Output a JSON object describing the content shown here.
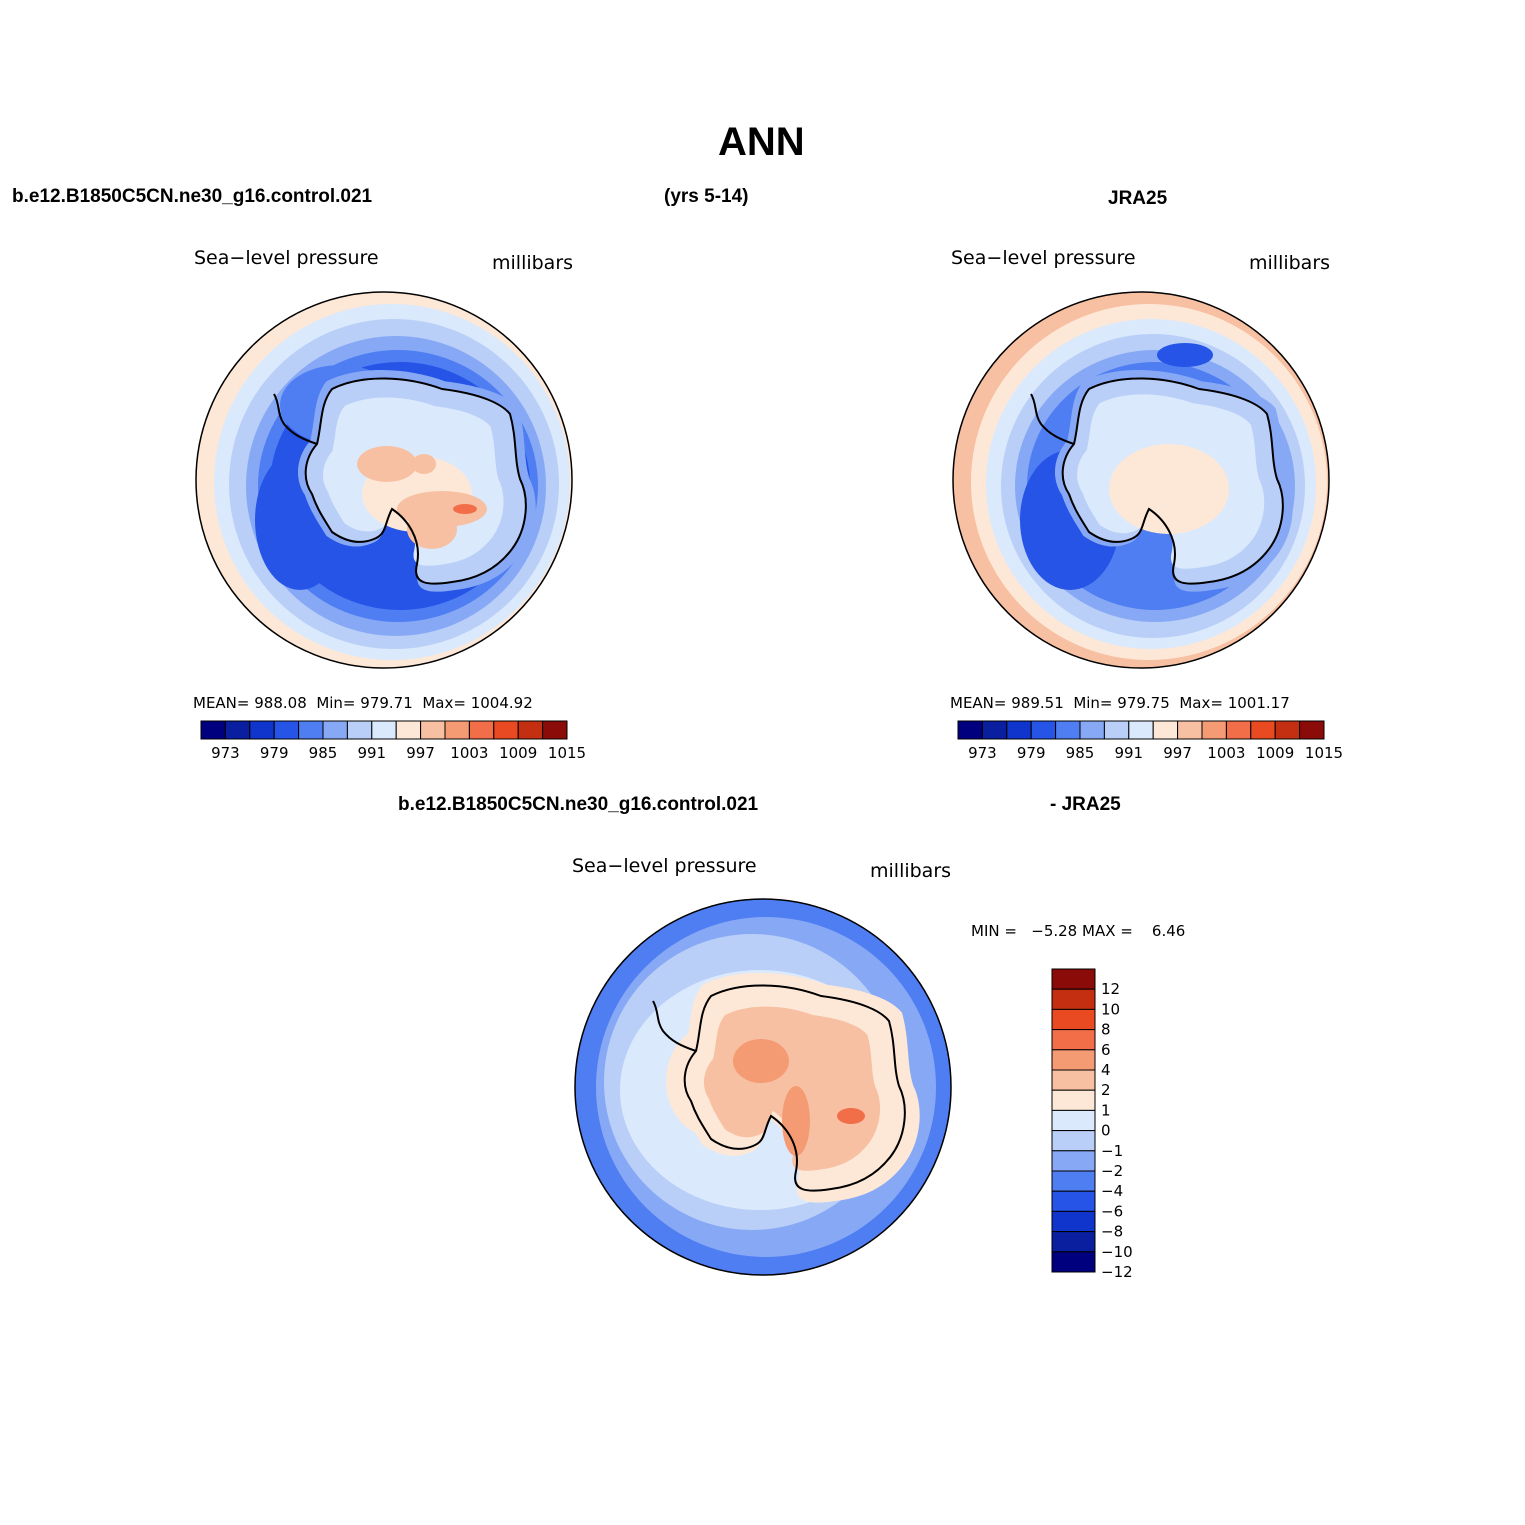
{
  "figure": {
    "title": "ANN",
    "case_name": "b.e12.B1850C5CN.ne30_g16.control.021",
    "years": "(yrs 5-14)",
    "obs_name": "JRA25",
    "diff_case": "b.e12.B1850C5CN.ne30_g16.control.021",
    "diff_obs": "- JRA25"
  },
  "panels": {
    "model": {
      "variable": "Sea−level pressure",
      "units": "millibars",
      "stats": {
        "mean_label": "MEAN=",
        "mean": "988.08",
        "min_label": "Min=",
        "min": "979.71",
        "max_label": "Max=",
        "max": "1004.92"
      }
    },
    "obs": {
      "variable": "Sea−level pressure",
      "units": "millibars",
      "stats": {
        "mean_label": "MEAN=",
        "mean": "989.51",
        "min_label": "Min=",
        "min": "979.75",
        "max_label": "Max=",
        "max": "1001.17"
      }
    },
    "diff": {
      "variable": "Sea−level pressure",
      "units": "millibars",
      "stats": {
        "min_label": "MIN =",
        "min": "−5.28",
        "max_label": "MAX =",
        "max": "6.46"
      }
    }
  },
  "colorbars": {
    "abs": {
      "colors": [
        "#00007f",
        "#0a1ea0",
        "#0f35cc",
        "#2554e6",
        "#4f7ef2",
        "#87a9f5",
        "#b9cff8",
        "#dae9fc",
        "#fde8d8",
        "#f8c0a2",
        "#f49b74",
        "#f26e48",
        "#e94a21",
        "#c42f12",
        "#8b0b08"
      ],
      "labels": [
        "973",
        "979",
        "985",
        "991",
        "997",
        "1003",
        "1009",
        "1015"
      ]
    },
    "diff": {
      "colors": [
        "#00007f",
        "#0a1ea0",
        "#0f35cc",
        "#2554e6",
        "#4f7ef2",
        "#87a9f5",
        "#b9cff8",
        "#dae9fc",
        "#fde8d8",
        "#f8c0a2",
        "#f49b74",
        "#f26e48",
        "#e94a21",
        "#c42f12",
        "#8b0b08"
      ],
      "labels": [
        "12",
        "10",
        "8",
        "6",
        "4",
        "2",
        "1",
        "0",
        "−1",
        "−2",
        "−4",
        "−6",
        "−8",
        "−10",
        "−12"
      ]
    }
  }
}
